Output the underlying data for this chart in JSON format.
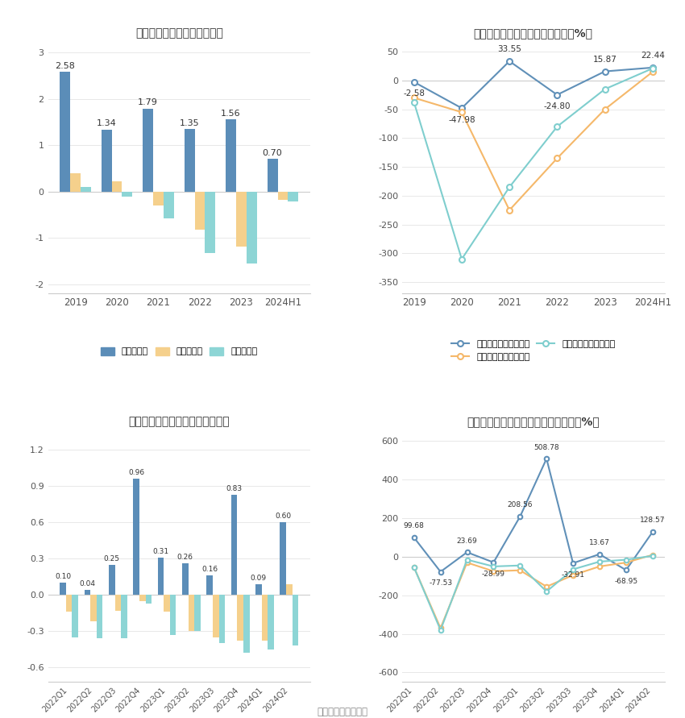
{
  "annual_bar": {
    "title": "历年营收、净利情况（亿元）",
    "categories": [
      "2019",
      "2020",
      "2021",
      "2022",
      "2023",
      "2024H1"
    ],
    "revenue": [
      2.58,
      1.34,
      1.79,
      1.35,
      1.56,
      0.7
    ],
    "net_profit": [
      0.4,
      0.22,
      -0.3,
      -0.82,
      -1.18,
      -0.18
    ],
    "deducted_profit": [
      0.1,
      -0.1,
      -0.58,
      -1.32,
      -1.55,
      -0.22
    ],
    "rev_labels": [
      "2.58",
      "1.34",
      "1.79",
      "1.35",
      "1.56",
      "0.70"
    ],
    "ylim": [
      -2.2,
      3.2
    ],
    "yticks": [
      -2,
      -1,
      0,
      1,
      2,
      3
    ]
  },
  "annual_line": {
    "title": "历年营收、净利同比增长率情况（%）",
    "categories": [
      "2019",
      "2020",
      "2021",
      "2022",
      "2023",
      "2024H1"
    ],
    "revenue_growth": [
      -2.58,
      -47.98,
      33.55,
      -24.8,
      15.87,
      22.44
    ],
    "net_profit_growth": [
      -30,
      -55,
      -225,
      -135,
      -50,
      15
    ],
    "deducted_growth": [
      -38,
      -310,
      -185,
      -80,
      -15,
      21
    ],
    "rev_labels": [
      "-2.58",
      "-47.98",
      "33.55",
      "-24.80",
      "15.87",
      "22.44"
    ],
    "ylim": [
      -370,
      65
    ],
    "yticks": [
      -350,
      -300,
      -250,
      -200,
      -150,
      -100,
      -50,
      0,
      50
    ]
  },
  "quarterly_bar": {
    "title": "营收、净利季度变动情况（亿元）",
    "categories": [
      "2022Q1",
      "2022Q2",
      "2022Q3",
      "2022Q4",
      "2023Q1",
      "2023Q2",
      "2023Q3",
      "2023Q4",
      "2024Q1",
      "2024Q2"
    ],
    "revenue": [
      0.1,
      0.04,
      0.25,
      0.96,
      0.31,
      0.26,
      0.16,
      0.83,
      0.09,
      0.6
    ],
    "net_profit": [
      -0.14,
      -0.22,
      -0.13,
      -0.05,
      -0.14,
      -0.3,
      -0.35,
      -0.38,
      -0.38,
      0.09
    ],
    "deducted_profit": [
      -0.35,
      -0.36,
      -0.36,
      -0.07,
      -0.33,
      -0.3,
      -0.4,
      -0.48,
      -0.45,
      -0.42
    ],
    "rev_labels": [
      "0.10",
      "0.04",
      "0.25",
      "0.96",
      "0.31",
      "0.26",
      "0.16",
      "0.83",
      "0.09",
      "0.60"
    ],
    "ylim": [
      -0.72,
      1.35
    ],
    "yticks": [
      -0.6,
      -0.3,
      0,
      0.3,
      0.6,
      0.9,
      1.2
    ]
  },
  "quarterly_line": {
    "title": "营收、净利同比增长率季度变动情况（%）",
    "categories": [
      "2022Q1",
      "2022Q2",
      "2022Q3",
      "2022Q4",
      "2023Q1",
      "2023Q2",
      "2023Q3",
      "2023Q4",
      "2024Q1",
      "2024Q2"
    ],
    "revenue_growth": [
      99.68,
      -77.53,
      23.69,
      -28.99,
      208.56,
      508.78,
      -32.91,
      13.67,
      -68.95,
      128.57
    ],
    "net_profit_growth": [
      -55,
      -370,
      -30,
      -75,
      -70,
      -155,
      -95,
      -50,
      -30,
      10
    ],
    "deducted_growth": [
      -55,
      -380,
      -15,
      -50,
      -45,
      -180,
      -65,
      -25,
      -15,
      5
    ],
    "rev_labels": [
      "99.68",
      "-77.53",
      "23.69",
      "-28.99",
      "208.56",
      "508.78",
      "-32.91",
      "13.67",
      "-68.95",
      "128.57"
    ],
    "ylim": [
      -650,
      650
    ],
    "yticks": [
      -600,
      -400,
      -200,
      0,
      200,
      400,
      600
    ]
  },
  "colors": {
    "revenue_bar": "#5b8db8",
    "net_profit_bar": "#f5d08c",
    "deducted_bar": "#8dd5d5",
    "revenue_line": "#6090b8",
    "net_profit_line": "#f5b86a",
    "deducted_line": "#7fcece",
    "background": "#ffffff",
    "grid": "#e8e8e8",
    "zero_line": "#cccccc"
  },
  "legend": {
    "bar_labels": [
      "营业总收入",
      "归母净利润",
      "扣非净利润"
    ],
    "line_labels": [
      "营业总收入同比增长率",
      "归母净利润同比增长率",
      "扣非净利润同比增长率"
    ]
  },
  "footer": "数据来源：恒生聚源"
}
